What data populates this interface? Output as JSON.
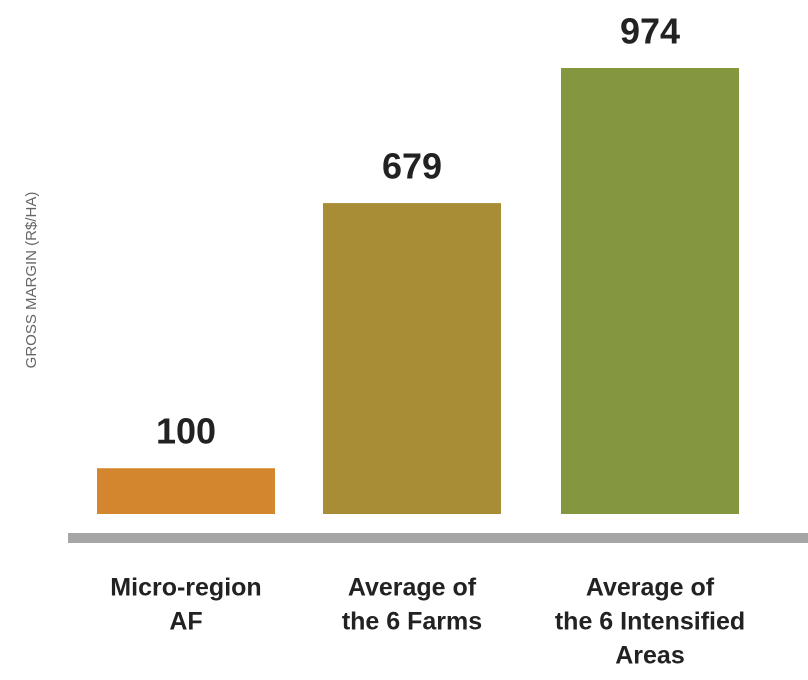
{
  "chart_data": {
    "type": "bar",
    "y_axis_label": "GROSS MARGIN (R$/HA)",
    "categories": [
      [
        "Micro-region",
        "AF"
      ],
      [
        "Average of",
        "the 6 Farms"
      ],
      [
        "Average of",
        "the 6 Intensified",
        "Areas"
      ]
    ],
    "values": [
      100,
      679,
      974
    ],
    "colors": [
      "#d4862e",
      "#a88d36",
      "#84973f"
    ]
  }
}
